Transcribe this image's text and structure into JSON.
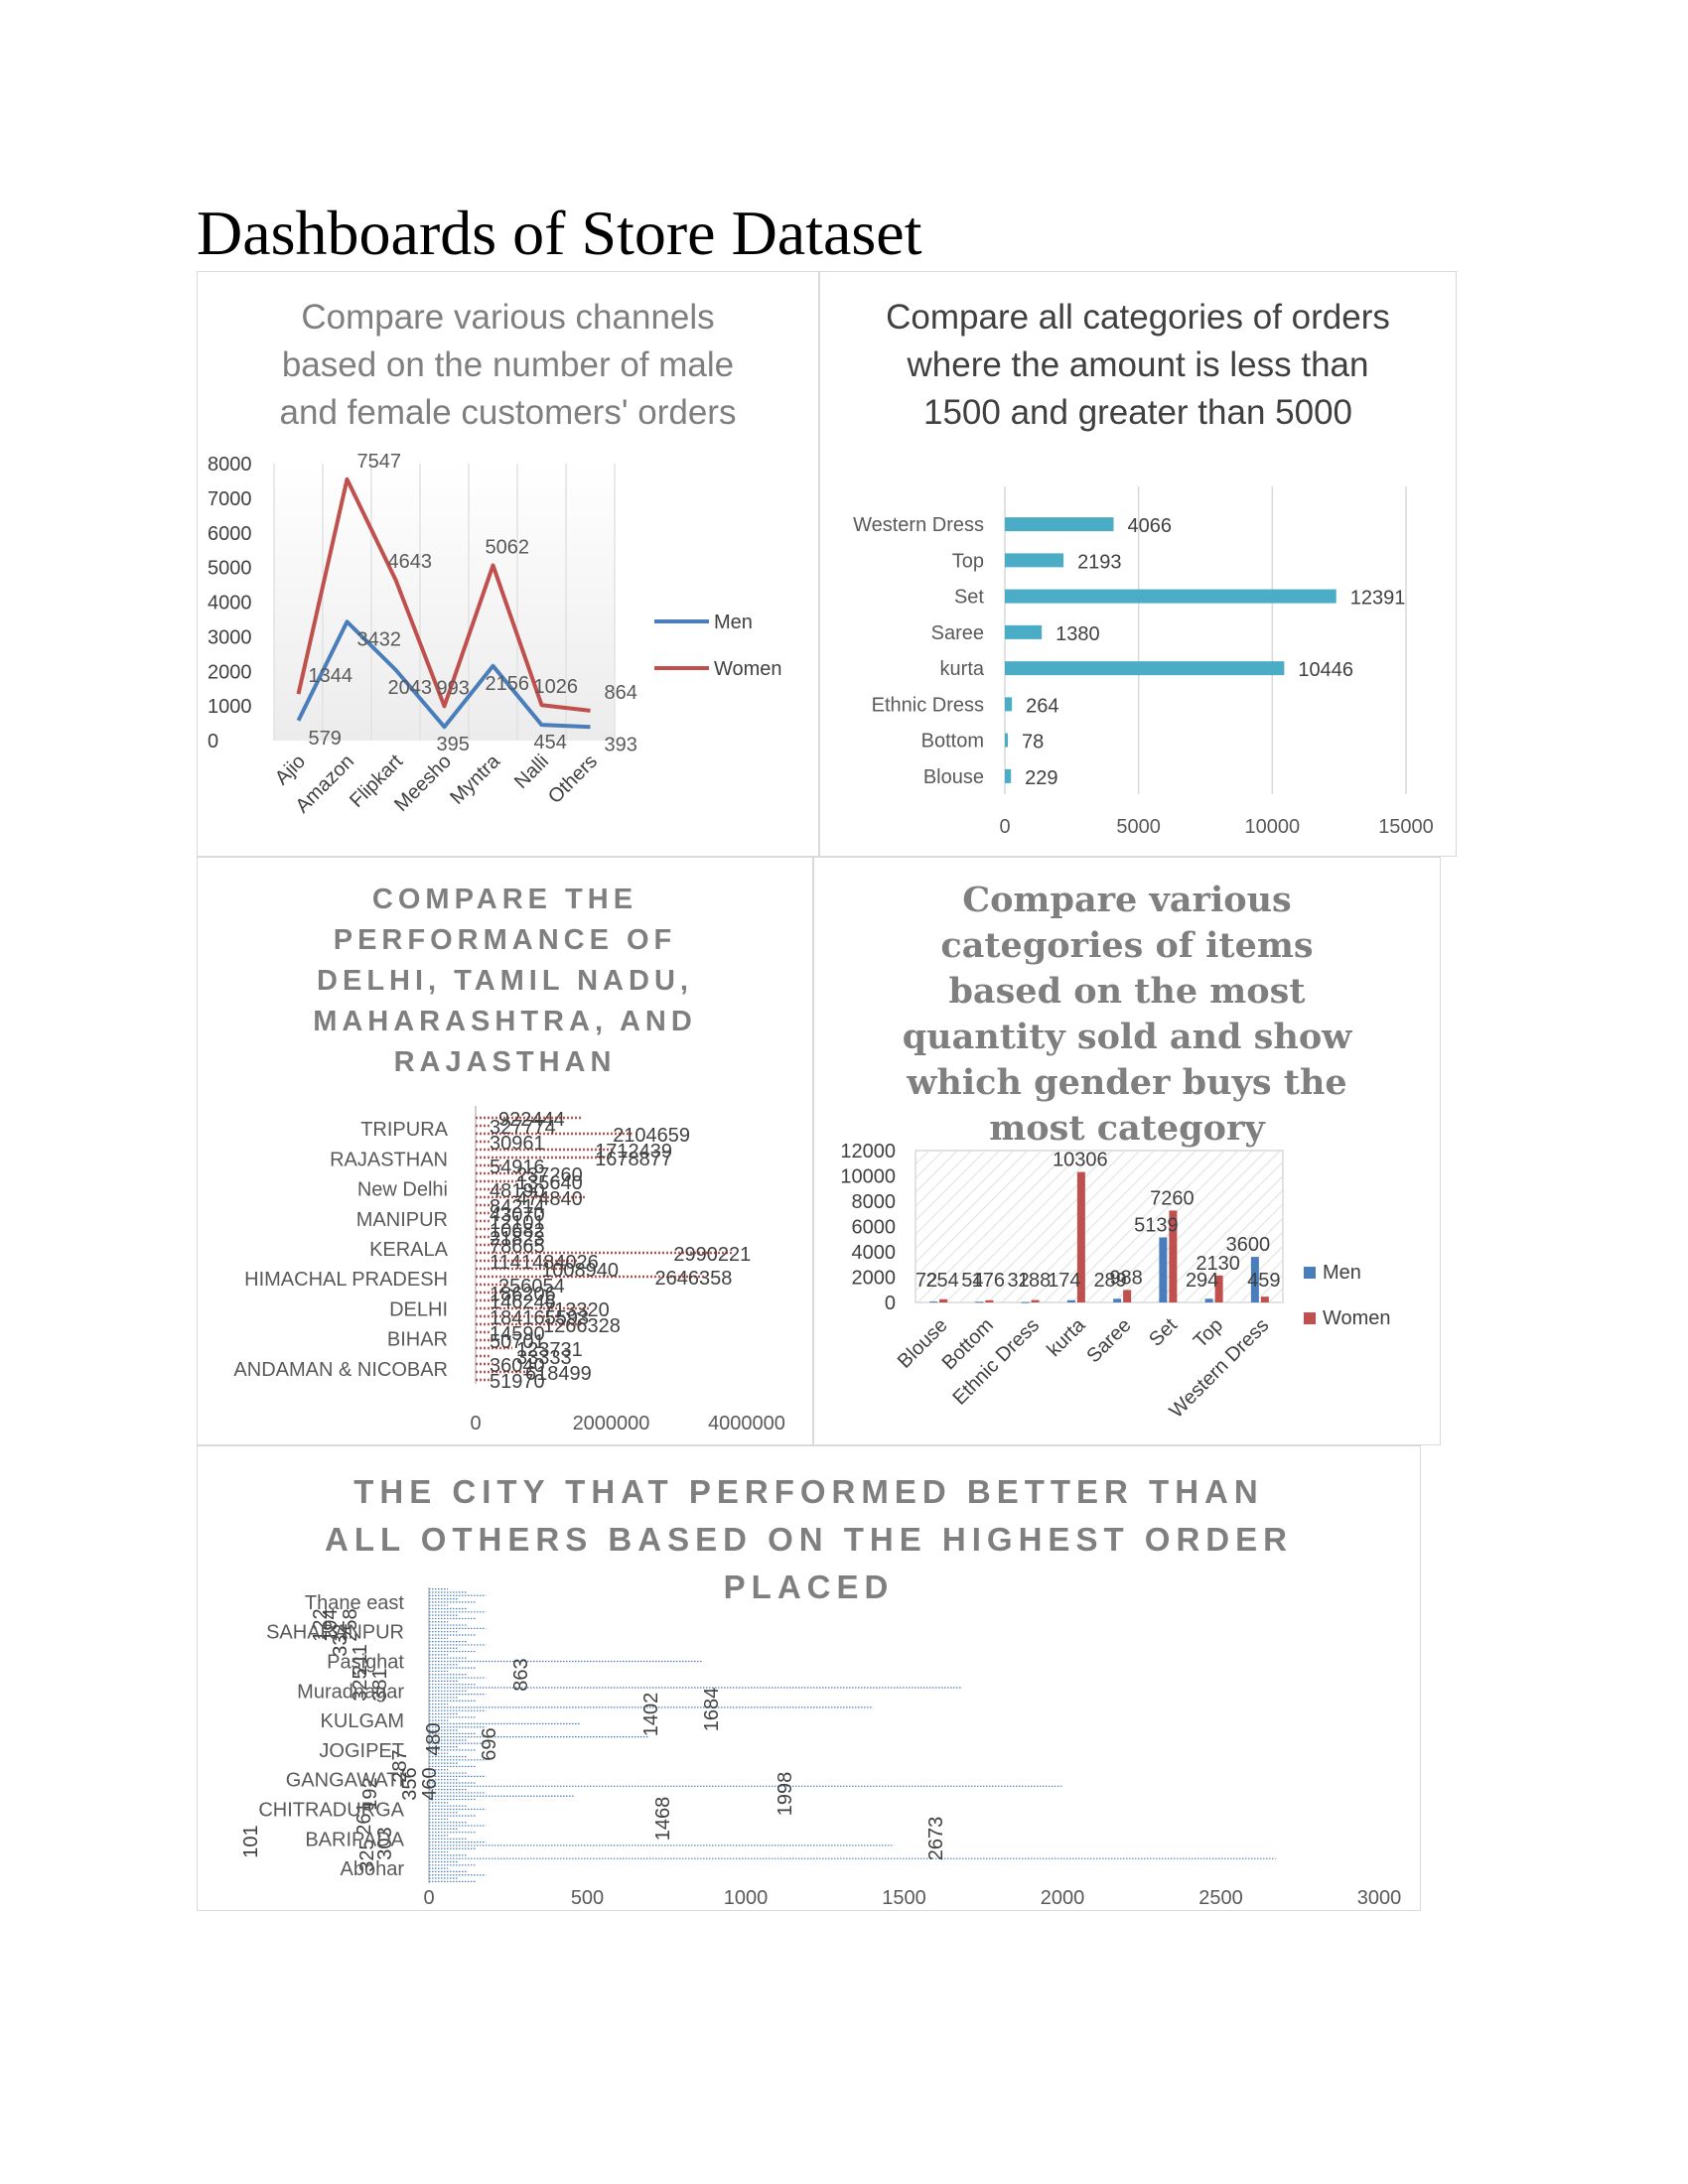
{
  "page": {
    "title": "Dashboards of Store Dataset"
  },
  "chart_data": [
    {
      "id": "channels",
      "type": "line",
      "title": "Compare various channels based on the number of male and female customers' orders",
      "categories": [
        "Ajio",
        "Amazon",
        "Flipkart",
        "Meesho",
        "Myntra",
        "Nalli",
        "Others"
      ],
      "series": [
        {
          "name": "Men",
          "values": [
            579,
            3432,
            2043,
            395,
            2156,
            454,
            393
          ],
          "color": "#4a7ebb"
        },
        {
          "name": "Women",
          "values": [
            1344,
            7547,
            4643,
            993,
            5062,
            1026,
            864
          ],
          "color": "#c0504d"
        }
      ],
      "ylim": [
        0,
        8000
      ],
      "yticks": [
        "0",
        "1000",
        "2000",
        "3000",
        "4000",
        "5000",
        "6000",
        "7000",
        "8000"
      ],
      "grid": "vertical",
      "legend": "right"
    },
    {
      "id": "categories-amount",
      "type": "bar",
      "orientation": "horizontal",
      "title": "Compare all categories of orders where the amount is less than 1500 and greater than 5000",
      "categories": [
        "Western Dress",
        "Top",
        "Set",
        "Saree",
        "kurta",
        "Ethnic Dress",
        "Bottom",
        "Blouse"
      ],
      "values": [
        4066,
        2193,
        12391,
        1380,
        10446,
        264,
        78,
        229
      ],
      "xlim": [
        0,
        15000
      ],
      "xticks": [
        "0",
        "5000",
        "10000",
        "15000"
      ],
      "color": "#4bacc6",
      "grid": "vertical"
    },
    {
      "id": "states",
      "type": "bar",
      "orientation": "horizontal",
      "title": "COMPARE THE PERFORMANCE OF DELHI, TAMIL NADU, MAHARASHTRA, AND RAJASTHAN",
      "categories": [
        "TRIPURA",
        "RAJASTHAN",
        "New Delhi",
        "MANIPUR",
        "KERALA",
        "HIMACHAL PRADESH",
        "DELHI",
        "BIHAR",
        "ANDAMAN & NICOBAR"
      ],
      "xlim": [
        0,
        4000000
      ],
      "xticks": [
        "0",
        "2000000",
        "4000000"
      ],
      "color": "#c0504d",
      "data_labels": [
        "922444",
        "327774",
        "2104659",
        "30961",
        "1712439",
        "1678877",
        "54916",
        "237260",
        "135640",
        "48190",
        "474840",
        "84214",
        "43070",
        "12101",
        "10682",
        "21823",
        "78665",
        "2990221",
        "1141484026",
        "1008940",
        "2646358",
        "256054",
        "186206",
        "146246",
        "713320",
        "184165593",
        "1266328",
        "14590",
        "50701",
        "123731",
        "33333",
        "36040",
        "618499",
        "51970"
      ]
    },
    {
      "id": "quantity-gender",
      "type": "bar",
      "title": "Compare various categories of items based on the most quantity sold and show which gender buys the most category",
      "categories": [
        "Blouse",
        "Bottom",
        "Ethnic Dress",
        "kurta",
        "Saree",
        "Set",
        "Top",
        "Western Dress"
      ],
      "series": [
        {
          "name": "Men",
          "values": [
            72,
            54,
            32,
            174,
            289,
            5139,
            294,
            3600
          ],
          "color": "#4a7ebb"
        },
        {
          "name": "Women",
          "values": [
            254,
            176,
            188,
            10306,
            988,
            7260,
            2130,
            459
          ],
          "color": "#c0504d"
        }
      ],
      "ylim": [
        0,
        12000
      ],
      "yticks": [
        "0",
        "2000",
        "4000",
        "6000",
        "8000",
        "10000",
        "12000"
      ],
      "data_labels": [
        "72",
        "254",
        "54",
        "176",
        "32",
        "188",
        "174",
        "10306",
        "289",
        "988",
        "5139",
        "7260",
        "294",
        "2130",
        "3600",
        "459"
      ],
      "legend": "right"
    },
    {
      "id": "cities",
      "type": "bar",
      "orientation": "horizontal",
      "title": "THE CITY THAT PERFORMED BETTER THAN ALL OTHERS BASED ON THE HIGHEST ORDER PLACED",
      "categories": [
        "Thane east",
        "SAHARANPUR",
        "Pasighat",
        "Muradnagar",
        "KULGAM",
        "JOGIPET",
        "GANGAWATI",
        "CHITRADURGA",
        "BARIPADA",
        "Abohar"
      ],
      "xlim": [
        0,
        3000
      ],
      "xticks": [
        "0",
        "500",
        "1000",
        "1500",
        "2000",
        "2500",
        "3000"
      ],
      "color": "#4a7ebb",
      "data_labels": [
        "258",
        "332",
        "194",
        "122",
        "863",
        "211",
        "381",
        "325",
        "1684",
        "1402",
        "480",
        "696",
        "460",
        "287",
        "356",
        "1998",
        "192",
        "261",
        "303",
        "1468",
        "2673",
        "101",
        "325"
      ]
    }
  ]
}
